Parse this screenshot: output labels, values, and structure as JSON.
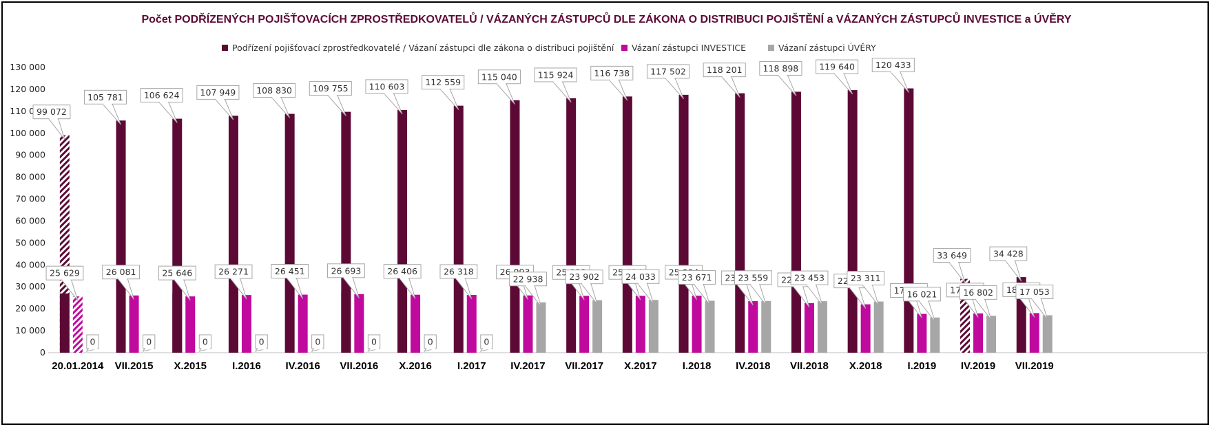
{
  "chart_data": {
    "type": "bar",
    "title": "Počet PODŘÍZENÝCH POJIŠŤOVACÍCH ZPROSTŘEDKOVATELŮ / VÁZANÝCH ZÁSTUPCŮ DLE ZÁKONA O DISTRIBUCI POJIŠTĚNÍ a VÁZANÝCH ZÁSTUPCŮ INVESTICE a ÚVĚRY",
    "categories": [
      "20.01.2014",
      "VII.2015",
      "X.2015",
      "I.2016",
      "IV.2016",
      "VII.2016",
      "X.2016",
      "I.2017",
      "IV.2017",
      "VII.2017",
      "X.2017",
      "I.2018",
      "IV.2018",
      "VII.2018",
      "X.2018",
      "I.2019",
      "IV.2019",
      "VII.2019"
    ],
    "series": [
      {
        "name": "Podřízení pojišťovací zprostředkovatelé / Vázaní zástupci dle zákona o distribuci pojištění",
        "color": "#5c0a35",
        "values": [
          99072,
          105781,
          106624,
          107949,
          108830,
          109755,
          110603,
          112559,
          115040,
          115924,
          116738,
          117502,
          118201,
          118898,
          119640,
          120433,
          33649,
          34428
        ],
        "hatched": [
          true,
          false,
          false,
          false,
          false,
          false,
          false,
          false,
          false,
          false,
          false,
          false,
          false,
          false,
          false,
          false,
          true,
          false
        ]
      },
      {
        "name": "Vázaní zástupci INVESTICE",
        "color": "#c0099d",
        "values": [
          25629,
          26081,
          25646,
          26271,
          26451,
          26693,
          26406,
          26318,
          26093,
          25923,
          25934,
          25994,
          23481,
          22561,
          22038,
          17691,
          17906,
          18049
        ],
        "hatched": [
          true,
          false,
          false,
          false,
          false,
          false,
          false,
          false,
          false,
          false,
          false,
          false,
          false,
          false,
          false,
          false,
          false,
          false
        ]
      },
      {
        "name": "Vázaní zástupci ÚVĚRY",
        "color": "#a6a6a6",
        "values": [
          0,
          0,
          0,
          0,
          0,
          0,
          0,
          0,
          22938,
          23902,
          24033,
          23671,
          23559,
          23453,
          23311,
          16021,
          16802,
          17053
        ],
        "hatched": [
          false,
          false,
          false,
          false,
          false,
          false,
          false,
          false,
          false,
          false,
          false,
          false,
          false,
          false,
          false,
          false,
          false,
          false
        ]
      }
    ],
    "overlay_values": [
      27000,
      null,
      27000,
      27500,
      null,
      28000,
      28000,
      null,
      null,
      null,
      null,
      null,
      null,
      null,
      null,
      null,
      null,
      null
    ],
    "ylim": [
      0,
      130000
    ],
    "yticks": [
      0,
      10000,
      20000,
      30000,
      40000,
      50000,
      60000,
      70000,
      80000,
      90000,
      100000,
      110000,
      120000,
      130000
    ],
    "ytick_labels": [
      "0",
      "10 000",
      "20 000",
      "30 000",
      "40 000",
      "50 000",
      "60 000",
      "70 000",
      "80 000",
      "90 000",
      "100 000",
      "110 000",
      "120 000",
      "130 000"
    ],
    "legend_position": "top",
    "grid": "none"
  }
}
